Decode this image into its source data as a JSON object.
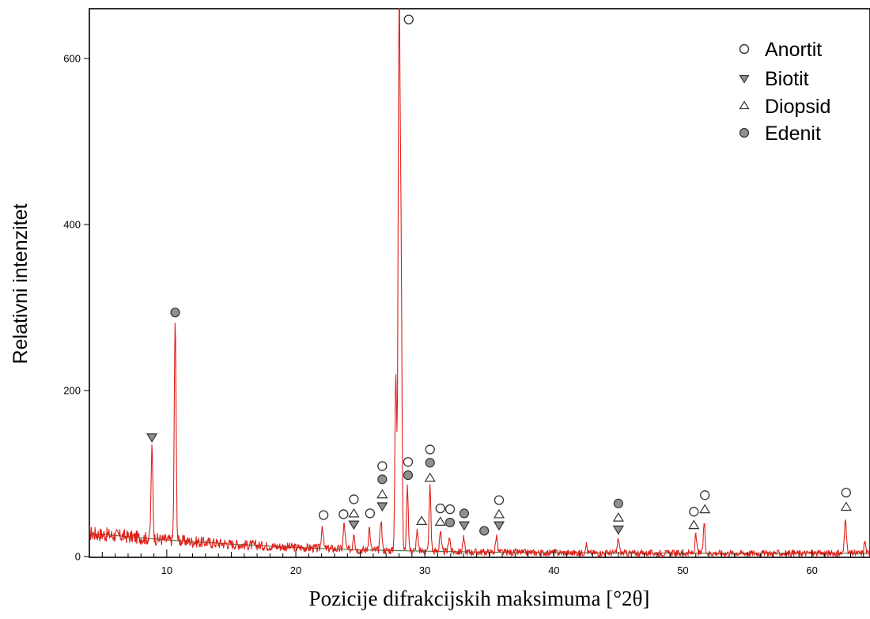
{
  "chart_data": {
    "type": "line",
    "title": "",
    "xlabel": "Pozicije difrakcijskih maksimuma [°2θ]",
    "ylabel": "Relativni intenzitet",
    "xlim": [
      4,
      64.5
    ],
    "ylim": [
      0,
      660
    ],
    "x_ticks": [
      10,
      20,
      30,
      40,
      50,
      60
    ],
    "y_ticks": [
      0,
      200,
      400,
      600
    ],
    "grid": false,
    "legend_position": "top-right",
    "colors": {
      "pattern": "#e0201a",
      "background_curve": "#4a7a4a",
      "marker_fill": "#909090",
      "marker_stroke": "#333333"
    },
    "legend": [
      {
        "marker": "open-circle",
        "label": "Anortit"
      },
      {
        "marker": "filled-down-triangle",
        "label": "Biotit"
      },
      {
        "marker": "open-up-triangle",
        "label": "Diopsid"
      },
      {
        "marker": "filled-circle",
        "label": "Edenit"
      }
    ],
    "background_curve": {
      "x": [
        4,
        10,
        15,
        20,
        25,
        30,
        35,
        40,
        45,
        50,
        55,
        60,
        64.5
      ],
      "y": [
        28,
        20,
        15,
        11,
        8,
        6.5,
        5.2,
        4.5,
        4.2,
        4,
        4,
        4,
        4
      ]
    },
    "peaks": [
      {
        "x": 8.85,
        "y": 130
      },
      {
        "x": 10.65,
        "y": 285
      },
      {
        "x": 22.05,
        "y": 38
      },
      {
        "x": 23.75,
        "y": 40
      },
      {
        "x": 24.5,
        "y": 30
      },
      {
        "x": 25.7,
        "y": 35
      },
      {
        "x": 26.6,
        "y": 45
      },
      {
        "x": 27.75,
        "y": 220
      },
      {
        "x": 28.0,
        "y": 660
      },
      {
        "x": 28.15,
        "y": 370
      },
      {
        "x": 28.65,
        "y": 85
      },
      {
        "x": 29.4,
        "y": 30
      },
      {
        "x": 30.4,
        "y": 85
      },
      {
        "x": 31.2,
        "y": 30
      },
      {
        "x": 31.9,
        "y": 25
      },
      {
        "x": 33.0,
        "y": 22
      },
      {
        "x": 35.55,
        "y": 25
      },
      {
        "x": 42.5,
        "y": 15
      },
      {
        "x": 45.0,
        "y": 22
      },
      {
        "x": 51.0,
        "y": 25
      },
      {
        "x": 51.65,
        "y": 40
      },
      {
        "x": 62.6,
        "y": 48
      },
      {
        "x": 64.1,
        "y": 18
      }
    ],
    "phase_markers": [
      {
        "phase": "Biotit",
        "x": 8.85,
        "y": 143
      },
      {
        "phase": "Edenit",
        "x": 10.65,
        "y": 294
      },
      {
        "phase": "Anortit",
        "x": 22.15,
        "y": 50
      },
      {
        "phase": "Anortit",
        "x": 23.7,
        "y": 51
      },
      {
        "phase": "Anortit",
        "x": 24.5,
        "y": 69
      },
      {
        "phase": "Diopsid",
        "x": 24.5,
        "y": 52
      },
      {
        "phase": "Biotit",
        "x": 24.5,
        "y": 38
      },
      {
        "phase": "Anortit",
        "x": 25.75,
        "y": 52
      },
      {
        "phase": "Anortit",
        "x": 26.7,
        "y": 109
      },
      {
        "phase": "Edenit",
        "x": 26.7,
        "y": 93
      },
      {
        "phase": "Diopsid",
        "x": 26.7,
        "y": 75
      },
      {
        "phase": "Biotit",
        "x": 26.7,
        "y": 60
      },
      {
        "phase": "Anortit",
        "x": 28.75,
        "y": 647
      },
      {
        "phase": "Anortit",
        "x": 28.7,
        "y": 114
      },
      {
        "phase": "Edenit",
        "x": 28.7,
        "y": 98
      },
      {
        "phase": "Diopsid",
        "x": 29.75,
        "y": 43
      },
      {
        "phase": "Anortit",
        "x": 30.4,
        "y": 129
      },
      {
        "phase": "Edenit",
        "x": 30.4,
        "y": 113
      },
      {
        "phase": "Diopsid",
        "x": 30.4,
        "y": 95
      },
      {
        "phase": "Anortit",
        "x": 31.2,
        "y": 58
      },
      {
        "phase": "Diopsid",
        "x": 31.2,
        "y": 42
      },
      {
        "phase": "Anortit",
        "x": 31.95,
        "y": 57
      },
      {
        "phase": "Edenit",
        "x": 31.95,
        "y": 41
      },
      {
        "phase": "Edenit",
        "x": 33.05,
        "y": 52
      },
      {
        "phase": "Biotit",
        "x": 33.05,
        "y": 37
      },
      {
        "phase": "Edenit",
        "x": 34.6,
        "y": 31
      },
      {
        "phase": "Anortit",
        "x": 35.75,
        "y": 68
      },
      {
        "phase": "Diopsid",
        "x": 35.75,
        "y": 51
      },
      {
        "phase": "Biotit",
        "x": 35.75,
        "y": 37
      },
      {
        "phase": "Edenit",
        "x": 45.0,
        "y": 64
      },
      {
        "phase": "Diopsid",
        "x": 45.0,
        "y": 47
      },
      {
        "phase": "Biotit",
        "x": 45.0,
        "y": 32
      },
      {
        "phase": "Anortit",
        "x": 50.85,
        "y": 54
      },
      {
        "phase": "Diopsid",
        "x": 50.85,
        "y": 38
      },
      {
        "phase": "Anortit",
        "x": 51.7,
        "y": 74
      },
      {
        "phase": "Diopsid",
        "x": 51.7,
        "y": 57
      },
      {
        "phase": "Anortit",
        "x": 62.65,
        "y": 77
      },
      {
        "phase": "Diopsid",
        "x": 62.65,
        "y": 60
      }
    ]
  }
}
